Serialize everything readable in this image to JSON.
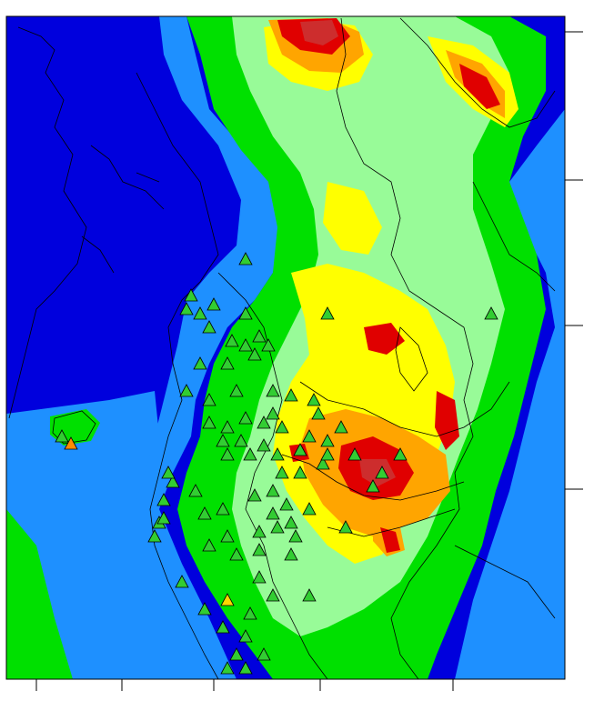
{
  "map": {
    "legend_colors": {
      "deep_low": "#0000dd",
      "low": "#1e90ff",
      "mid_low": "#00e000",
      "mid": "#98fb98",
      "mid_high": "#ffff00",
      "high": "#ffa500",
      "very_high": "#e00000",
      "extreme": "#cd2d2d"
    },
    "station_marker_color_default": "#32cd32",
    "station_marker_color_alt": "#ffd700",
    "station_marker_color_warn": "#ff8c00",
    "outline_color": "#000000",
    "axis_ticks_right": 4,
    "axis_ticks_bottom": 5
  }
}
